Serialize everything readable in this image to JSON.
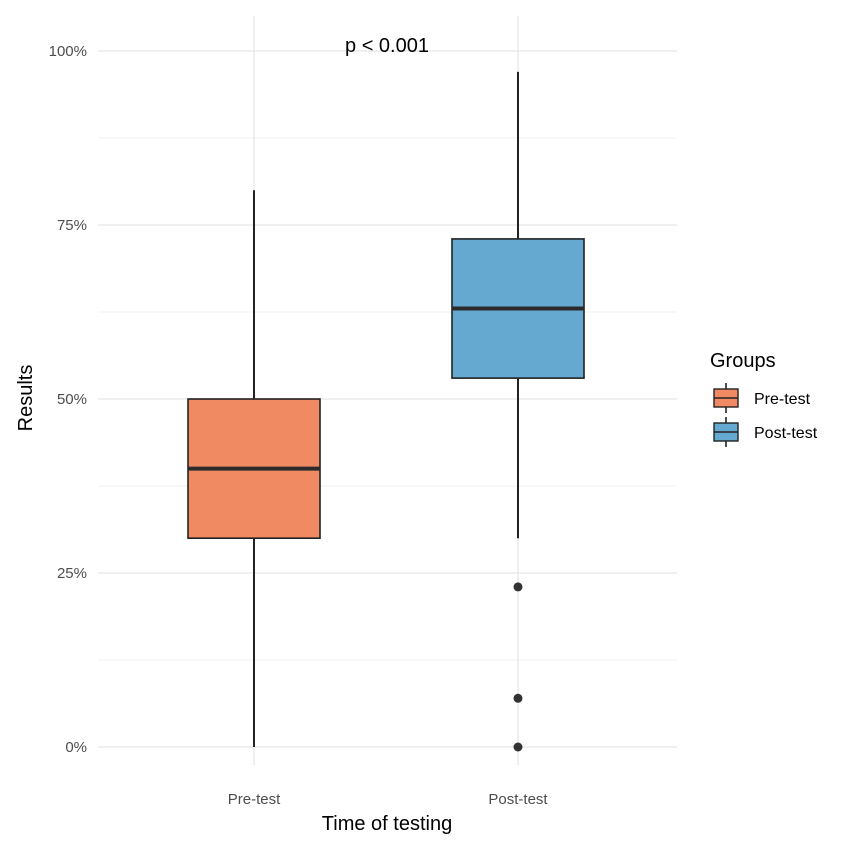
{
  "chart_data": {
    "type": "boxplot",
    "annotation": "p < 0.001",
    "xlabel": "Time of testing",
    "ylabel": "Results",
    "categories": [
      "Pre-test",
      "Post-test"
    ],
    "ylim": [
      0,
      100
    ],
    "y_ticks": [
      0,
      25,
      50,
      75,
      100
    ],
    "y_tick_labels": [
      "0%",
      "25%",
      "50%",
      "75%",
      "100%"
    ],
    "grid": true,
    "legend": {
      "title": "Groups",
      "position": "right",
      "entries": [
        {
          "label": "Pre-test",
          "color": "#F08A62"
        },
        {
          "label": "Post-test",
          "color": "#65A9D0"
        }
      ]
    },
    "series": [
      {
        "name": "Pre-test",
        "category": "Pre-test",
        "color": "#F08A62",
        "whisker_low": 0,
        "q1": 30,
        "median": 40,
        "q3": 50,
        "whisker_high": 80,
        "outliers": []
      },
      {
        "name": "Post-test",
        "category": "Post-test",
        "color": "#65A9D0",
        "whisker_low": 30,
        "q1": 53,
        "median": 63,
        "q3": 73,
        "whisker_high": 97,
        "outliers": [
          23,
          7,
          0
        ]
      }
    ]
  }
}
